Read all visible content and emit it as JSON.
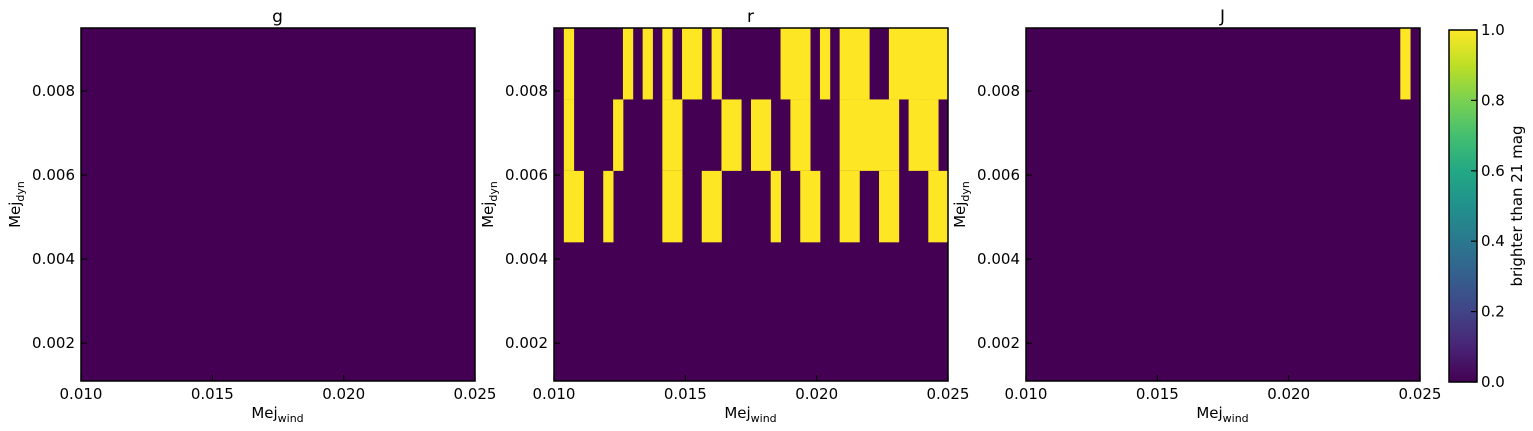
{
  "chart_data": {
    "type": "heatmap",
    "x_range": [
      0.01,
      0.025
    ],
    "y_range": [
      0.0011,
      0.0095
    ],
    "x_ticks": [
      "0.010",
      "0.015",
      "0.020",
      "0.025"
    ],
    "y_ticks": [
      "0.002",
      "0.004",
      "0.006",
      "0.008"
    ],
    "x_label": {
      "base": "Mej",
      "sub": "wind"
    },
    "y_label": {
      "base": "Mej",
      "sub": "dyn"
    },
    "grid": {
      "x_bins": 40,
      "y_band_edges": [
        0.0095,
        0.0078,
        0.0061,
        0.0044,
        0.0011
      ]
    },
    "panels": [
      {
        "title": "g",
        "bright_bins_by_band": [
          [],
          [],
          [],
          []
        ]
      },
      {
        "title": "r",
        "bright_bins_by_band": [
          [
            1,
            7,
            9,
            11,
            13,
            14,
            16,
            23,
            24,
            25,
            27,
            29,
            30,
            31,
            34,
            35,
            36,
            37,
            38,
            39
          ],
          [
            1,
            6,
            11,
            12,
            17,
            18,
            20,
            21,
            24,
            25,
            29,
            30,
            31,
            32,
            33,
            34,
            36,
            37,
            38
          ],
          [
            1,
            2,
            5,
            11,
            12,
            15,
            16,
            22,
            25,
            26,
            29,
            30,
            33,
            34,
            38,
            39
          ],
          []
        ]
      },
      {
        "title": "J",
        "bright_bins_by_band": [
          [
            38
          ],
          [],
          [],
          []
        ]
      }
    ],
    "colorbar": {
      "label": "brighter than 21 mag",
      "range": [
        0,
        1
      ],
      "ticks": [
        "0.0",
        "0.2",
        "0.4",
        "0.6",
        "0.8",
        "1.0"
      ],
      "colormap": "viridis"
    },
    "colors": {
      "low": "#440154",
      "high": "#fde725"
    }
  }
}
